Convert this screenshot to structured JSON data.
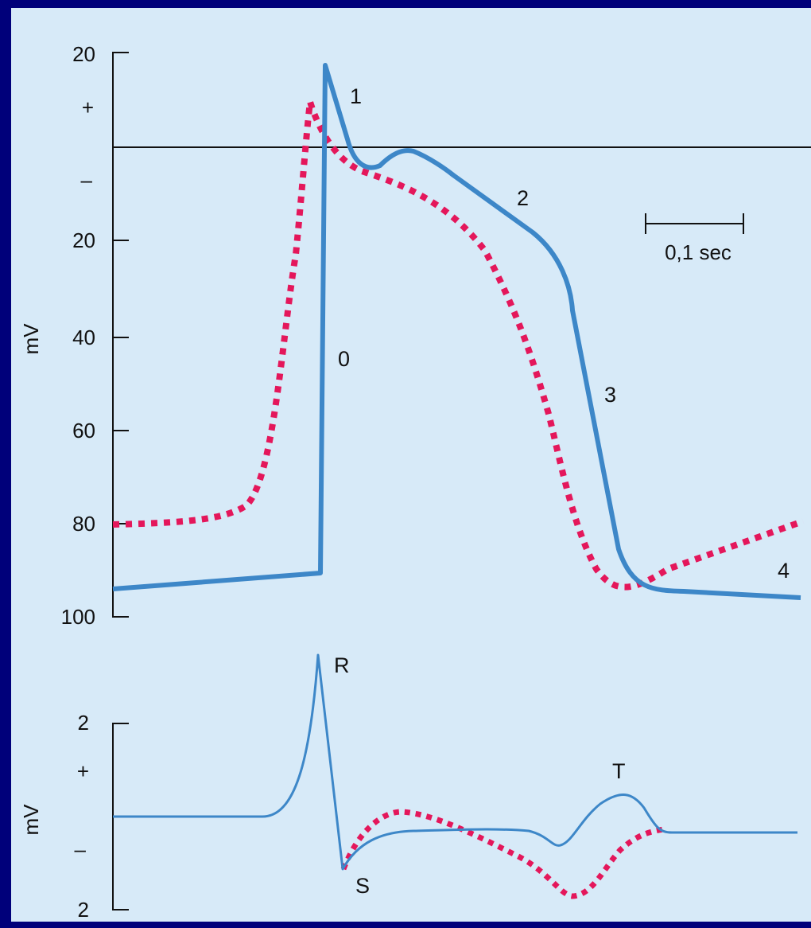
{
  "colors": {
    "frame": "#00007a",
    "panel": "#d7eaf8",
    "blue": "#3d87c8",
    "red": "#e4175b",
    "ink": "#111111"
  },
  "top": {
    "axis_label": "mV",
    "ticks": [
      "20",
      "+",
      "–",
      "20",
      "40",
      "60",
      "80",
      "100"
    ],
    "phases": [
      "0",
      "1",
      "2",
      "3",
      "4"
    ],
    "scale_label": "0,1 sec"
  },
  "bottom": {
    "axis_label": "mV",
    "ticks": [
      "2",
      "+",
      "–",
      "2"
    ],
    "waves": [
      "R",
      "S",
      "T"
    ]
  }
}
